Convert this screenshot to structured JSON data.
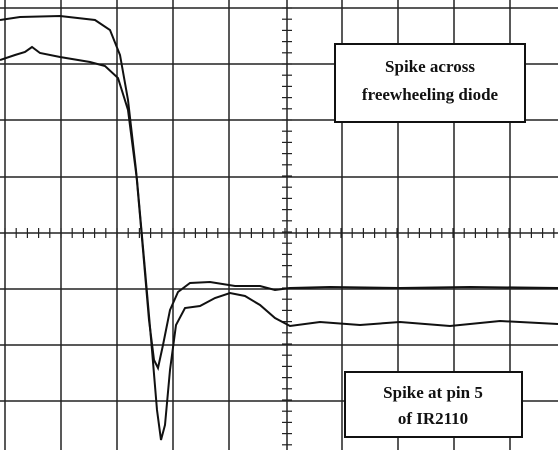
{
  "annotations": [
    {
      "lines": [
        "Spike across",
        "freewheeling diode"
      ]
    },
    {
      "lines": [
        "Spike at pin 5",
        "of IR2110"
      ]
    }
  ]
}
